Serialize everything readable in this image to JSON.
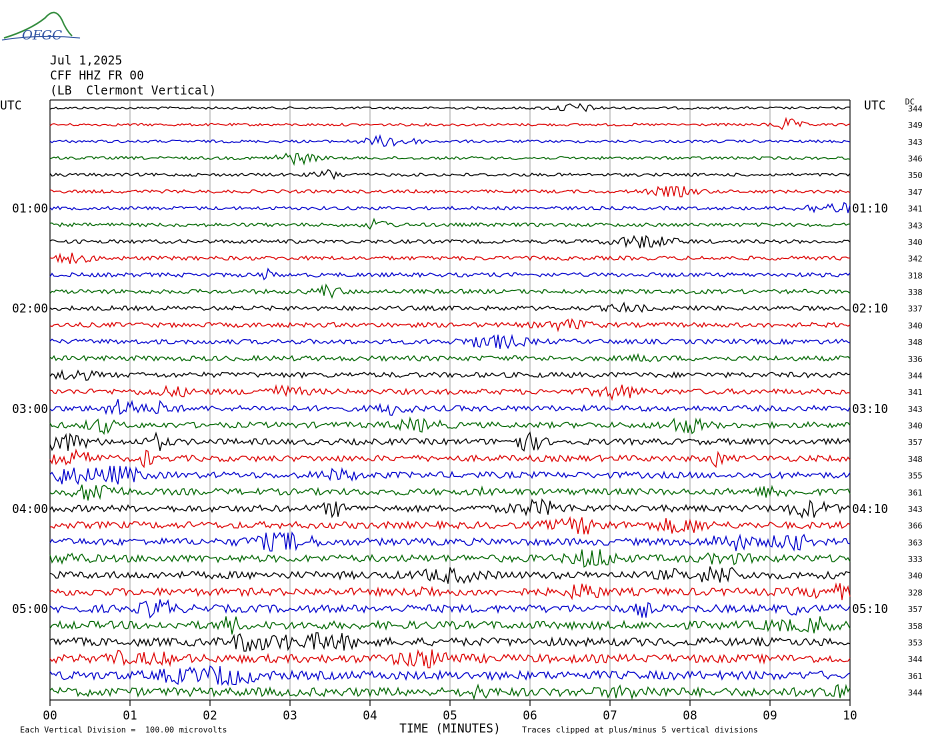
{
  "logo": "OFGC",
  "header": {
    "date": "Jul 1,2025",
    "station": "CFF HHZ FR 00",
    "location": "(LB  Clermont Vertical)"
  },
  "left_labels": [
    "UTC",
    "01:00",
    "02:00",
    "03:00",
    "04:00",
    "05:00"
  ],
  "right_labels": [
    "UTC",
    "01:10",
    "02:10",
    "03:10",
    "04:10",
    "05:10"
  ],
  "dc_label": "DC",
  "dc_offsets": [
    344,
    349,
    343,
    346,
    350,
    347,
    341,
    343,
    340,
    342,
    318,
    338,
    337,
    340,
    348,
    336,
    344,
    341,
    343,
    340,
    357,
    348,
    355,
    361,
    343,
    366,
    363,
    333,
    340,
    328,
    357,
    358,
    353,
    344,
    361,
    344
  ],
  "x_ticks": [
    "00",
    "01",
    "02",
    "03",
    "04",
    "05",
    "06",
    "07",
    "08",
    "09",
    "10"
  ],
  "x_axis_label": "TIME (MINUTES)",
  "footer": {
    "scale": "Each Vertical Division =  100.00 microvolts",
    "clipping": "Traces clipped at plus/minus 5 vertical divisions"
  }
}
